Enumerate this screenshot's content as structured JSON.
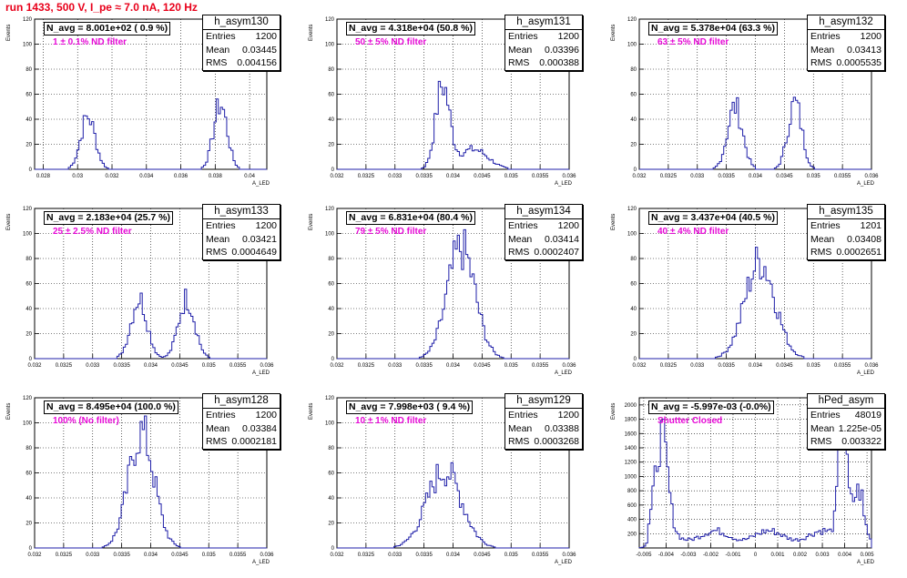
{
  "title": "run 1433,   500 V, I_pe ≈ 7.0 nA, 120 Hz",
  "panels": [
    {
      "name": "h_asym130",
      "navg": "N_avg = 8.001e+02 ( 0.9 %)",
      "filter": "1 ± 0.1% ND filter",
      "entries": "1200",
      "mean": "0.03445",
      "rms": "0.004156"
    },
    {
      "name": "h_asym131",
      "navg": "N_avg = 4.318e+04 (50.8 %)",
      "filter": "50 ± 5% ND filter",
      "entries": "1200",
      "mean": "0.03396",
      "rms": "0.000388"
    },
    {
      "name": "h_asym132",
      "navg": "N_avg = 5.378e+04 (63.3 %)",
      "filter": "63 ± 5% ND filter",
      "entries": "1200",
      "mean": "0.03413",
      "rms": "0.0005535"
    },
    {
      "name": "h_asym133",
      "navg": "N_avg = 2.183e+04 (25.7 %)",
      "filter": "25 ± 2.5% ND filter",
      "entries": "1200",
      "mean": "0.03421",
      "rms": "0.0004649"
    },
    {
      "name": "h_asym134",
      "navg": "N_avg = 6.831e+04 (80.4 %)",
      "filter": "79 ± 5% ND filter",
      "entries": "1200",
      "mean": "0.03414",
      "rms": "0.0002407"
    },
    {
      "name": "h_asym135",
      "navg": "N_avg = 3.437e+04 (40.5 %)",
      "filter": "40 ± 4% ND filter",
      "entries": "1201",
      "mean": "0.03408",
      "rms": "0.0002651"
    },
    {
      "name": "h_asym128",
      "navg": "N_avg = 8.495e+04 (100.0 %)",
      "filter": "100% (No filter)",
      "entries": "1200",
      "mean": "0.03384",
      "rms": "0.0002181"
    },
    {
      "name": "h_asym129",
      "navg": "N_avg = 7.998e+03 ( 9.4 %)",
      "filter": "10 ± 1% ND filter",
      "entries": "1200",
      "mean": "0.03388",
      "rms": "0.0003268"
    },
    {
      "name": "hPed_asym",
      "navg": "N_avg = -5.997e-03 (-0.0%)",
      "filter": "Shutter Closed",
      "entries": "48019",
      "mean": "1.225e-05",
      "rms": "0.003322"
    }
  ],
  "labels": {
    "entries": "Entries",
    "mean": "Mean",
    "rms": "RMS",
    "ylabel": "Events",
    "xlabel": "A_LED"
  },
  "chart_data": [
    {
      "type": "bar",
      "title": "h_asym130",
      "xlabel": "A_LED",
      "ylabel": "Events",
      "xlim": [
        0.0275,
        0.041
      ],
      "ylim": [
        0,
        120
      ],
      "xticks": [
        "0.028",
        "0.03",
        "0.032",
        "0.034",
        "0.036",
        "0.038",
        "0.04"
      ],
      "xtick_values": [
        0.028,
        0.03,
        0.032,
        0.034,
        0.036,
        0.038,
        0.04
      ],
      "yticks": [
        0,
        20,
        40,
        60,
        80,
        100,
        120
      ],
      "peaks": [
        {
          "center": 0.0306,
          "sigma": 0.00042,
          "height": 42
        },
        {
          "center": 0.0383,
          "sigma": 0.0004,
          "height": 52
        }
      ]
    },
    {
      "type": "bar",
      "title": "h_asym131",
      "xlabel": "A_LED",
      "ylabel": "Events",
      "xlim": [
        0.032,
        0.036
      ],
      "ylim": [
        0,
        120
      ],
      "xticks": [
        "0.032",
        "0.0325",
        "0.033",
        "0.0335",
        "0.034",
        "0.0345",
        "0.035",
        "0.0355",
        "0.036"
      ],
      "xtick_values": [
        0.032,
        0.0325,
        0.033,
        0.0335,
        0.034,
        0.0345,
        0.035,
        0.0355,
        0.036
      ],
      "yticks": [
        0,
        20,
        40,
        60,
        80,
        100,
        120
      ],
      "peaks": [
        {
          "center": 0.03382,
          "sigma": 0.00012,
          "height": 66
        },
        {
          "center": 0.03435,
          "sigma": 0.00025,
          "height": 16
        }
      ]
    },
    {
      "type": "bar",
      "title": "h_asym132",
      "xlabel": "A_LED",
      "ylabel": "Events",
      "xlim": [
        0.032,
        0.036
      ],
      "ylim": [
        0,
        120
      ],
      "xticks": [
        "0.032",
        "0.0325",
        "0.033",
        "0.0335",
        "0.034",
        "0.0345",
        "0.035",
        "0.0355",
        "0.036"
      ],
      "xtick_values": [
        0.032,
        0.0325,
        0.033,
        0.0335,
        0.034,
        0.0345,
        0.035,
        0.0355,
        0.036
      ],
      "yticks": [
        0,
        20,
        40,
        60,
        80,
        100,
        120
      ],
      "peaks": [
        {
          "center": 0.03365,
          "sigma": 0.00013,
          "height": 50
        },
        {
          "center": 0.03468,
          "sigma": 0.00012,
          "height": 53
        }
      ]
    },
    {
      "type": "bar",
      "title": "h_asym133",
      "xlabel": "A_LED",
      "ylabel": "Events",
      "xlim": [
        0.032,
        0.036
      ],
      "ylim": [
        0,
        120
      ],
      "xticks": [
        "0.032",
        "0.0325",
        "0.033",
        "0.0335",
        "0.034",
        "0.0345",
        "0.035",
        "0.0355",
        "0.036"
      ],
      "xtick_values": [
        0.032,
        0.0325,
        0.033,
        0.0335,
        0.034,
        0.0345,
        0.035,
        0.0355,
        0.036
      ],
      "yticks": [
        0,
        20,
        40,
        60,
        80,
        100,
        120
      ],
      "peaks": [
        {
          "center": 0.0338,
          "sigma": 0.00014,
          "height": 48
        },
        {
          "center": 0.03462,
          "sigma": 0.00014,
          "height": 48
        }
      ]
    },
    {
      "type": "bar",
      "title": "h_asym134",
      "xlabel": "A_LED",
      "ylabel": "Events",
      "xlim": [
        0.032,
        0.036
      ],
      "ylim": [
        0,
        120
      ],
      "xticks": [
        "0.032",
        "0.0325",
        "0.033",
        "0.0335",
        "0.034",
        "0.0345",
        "0.035",
        "0.0355",
        "0.036"
      ],
      "xtick_values": [
        0.032,
        0.0325,
        0.033,
        0.0335,
        0.034,
        0.0345,
        0.035,
        0.0355,
        0.036
      ],
      "yticks": [
        0,
        20,
        40,
        60,
        80,
        100,
        120
      ],
      "peaks": [
        {
          "center": 0.03414,
          "sigma": 0.00024,
          "height": 88
        }
      ]
    },
    {
      "type": "bar",
      "title": "h_asym135",
      "xlabel": "A_LED",
      "ylabel": "Events",
      "xlim": [
        0.032,
        0.036
      ],
      "ylim": [
        0,
        120
      ],
      "xticks": [
        "0.032",
        "0.0325",
        "0.033",
        "0.0335",
        "0.034",
        "0.0345",
        "0.035",
        "0.0355",
        "0.036"
      ],
      "xtick_values": [
        0.032,
        0.0325,
        0.033,
        0.0335,
        0.034,
        0.0345,
        0.035,
        0.0355,
        0.036
      ],
      "yticks": [
        0,
        20,
        40,
        60,
        80,
        100,
        120
      ],
      "peaks": [
        {
          "center": 0.03408,
          "sigma": 0.00026,
          "height": 78
        }
      ]
    },
    {
      "type": "bar",
      "title": "h_asym128",
      "xlabel": "A_LED",
      "ylabel": "Events",
      "xlim": [
        0.032,
        0.036
      ],
      "ylim": [
        0,
        120
      ],
      "xticks": [
        "0.032",
        "0.0325",
        "0.033",
        "0.0335",
        "0.034",
        "0.0345",
        "0.035",
        "0.0355",
        "0.036"
      ],
      "xtick_values": [
        0.032,
        0.0325,
        0.033,
        0.0335,
        0.034,
        0.0345,
        0.035,
        0.0355,
        0.036
      ],
      "yticks": [
        0,
        20,
        40,
        60,
        80,
        100,
        120
      ],
      "peaks": [
        {
          "center": 0.03384,
          "sigma": 0.00022,
          "height": 92
        }
      ]
    },
    {
      "type": "bar",
      "title": "h_asym129",
      "xlabel": "A_LED",
      "ylabel": "Events",
      "xlim": [
        0.032,
        0.036
      ],
      "ylim": [
        0,
        120
      ],
      "xticks": [
        "0.032",
        "0.0325",
        "0.033",
        "0.0335",
        "0.034",
        "0.0345",
        "0.035",
        "0.0355",
        "0.036"
      ],
      "xtick_values": [
        0.032,
        0.0325,
        0.033,
        0.0335,
        0.034,
        0.0345,
        0.035,
        0.0355,
        0.036
      ],
      "yticks": [
        0,
        20,
        40,
        60,
        80,
        100,
        120
      ],
      "peaks": [
        {
          "center": 0.03385,
          "sigma": 0.0003,
          "height": 62
        }
      ]
    },
    {
      "type": "bar",
      "title": "hPed_asym",
      "xlabel": "A_LED",
      "ylabel": "Events",
      "xlim": [
        -0.0052,
        0.0052
      ],
      "ylim": [
        0,
        2100
      ],
      "xticks": [
        "-0.005",
        "-0.004",
        "-0.003",
        "-0.002",
        "-0.001",
        "0",
        "0.001",
        "0.002",
        "0.003",
        "0.004",
        "0.005"
      ],
      "xtick_values": [
        -0.005,
        -0.004,
        -0.003,
        -0.002,
        -0.001,
        0,
        0.001,
        0.002,
        0.003,
        0.004,
        0.005
      ],
      "yticks": [
        200,
        400,
        600,
        800,
        1000,
        1200,
        1400,
        1600,
        1800,
        2000
      ],
      "peaks": [
        {
          "center": -0.0042,
          "sigma": 0.00028,
          "height": 1300
        },
        {
          "center": 0.0039,
          "sigma": 0.00018,
          "height": 1650
        }
      ],
      "baseline": 210,
      "shoulder_right": {
        "center": 0.0046,
        "sigma": 0.0003,
        "height": 650
      }
    }
  ]
}
